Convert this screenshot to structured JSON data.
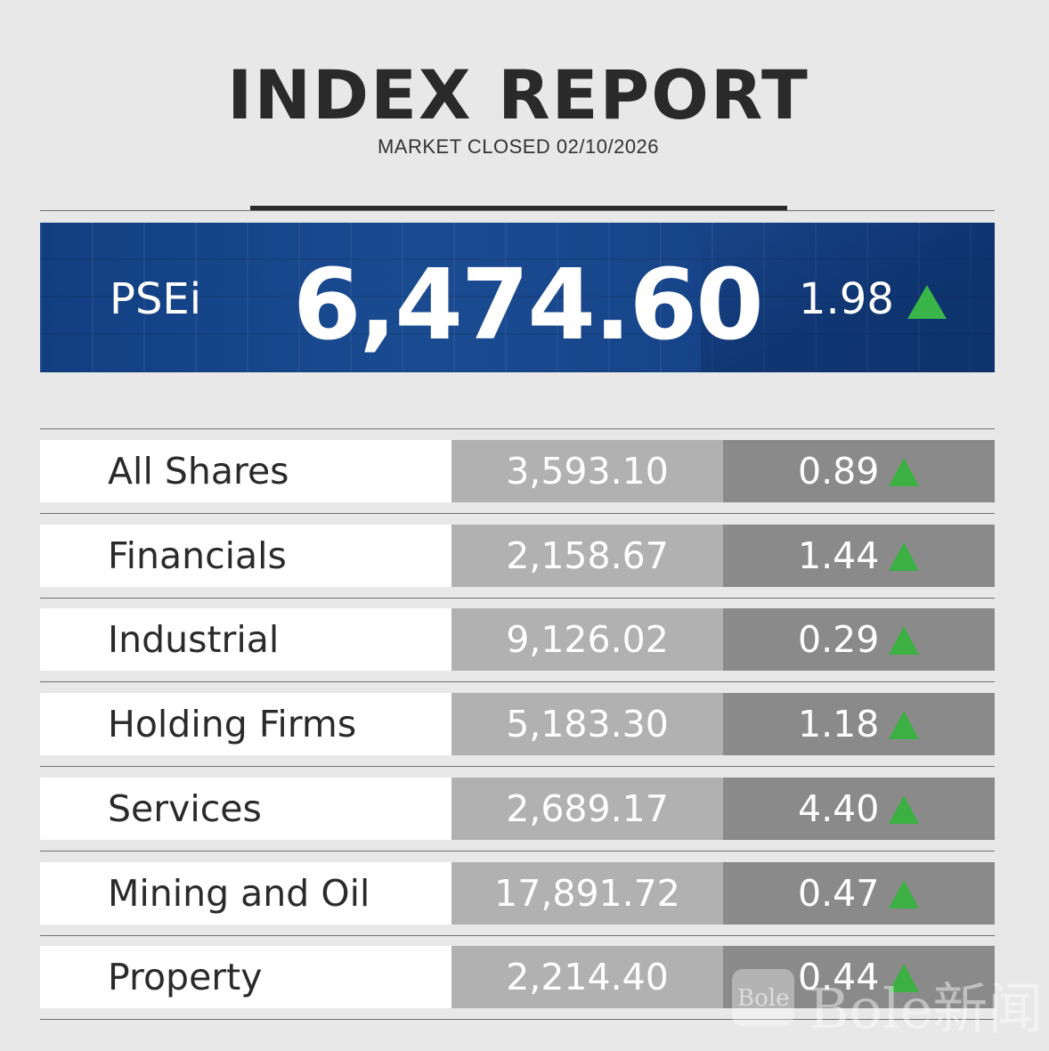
{
  "header": {
    "title": "INDEX REPORT",
    "subtitle": "MARKET CLOSED 02/10/2026"
  },
  "psei": {
    "label": "PSEi",
    "value": "6,474.60",
    "change": "1.98",
    "direction": "up"
  },
  "colors": {
    "banner": "#1a4b91",
    "up_arrow": "#3cb043",
    "name_bg": "#ffffff",
    "value_bg": "#b1b1b1",
    "change_bg": "#8a8a8a"
  },
  "indices": [
    {
      "name": "All Shares",
      "value": "3,593.10",
      "change": "0.89",
      "direction": "up"
    },
    {
      "name": "Financials",
      "value": "2,158.67",
      "change": "1.44",
      "direction": "up"
    },
    {
      "name": "Industrial",
      "value": "9,126.02",
      "change": "0.29",
      "direction": "up"
    },
    {
      "name": "Holding Firms",
      "value": "5,183.30",
      "change": "1.18",
      "direction": "up"
    },
    {
      "name": "Services",
      "value": "2,689.17",
      "change": "4.40",
      "direction": "up"
    },
    {
      "name": "Mining and Oil",
      "value": "17,891.72",
      "change": "0.47",
      "direction": "up"
    },
    {
      "name": "Property",
      "value": "2,214.40",
      "change": "0.44",
      "direction": "up"
    }
  ],
  "watermark": {
    "logo_text": "Bole",
    "text": "Bole新闻"
  }
}
